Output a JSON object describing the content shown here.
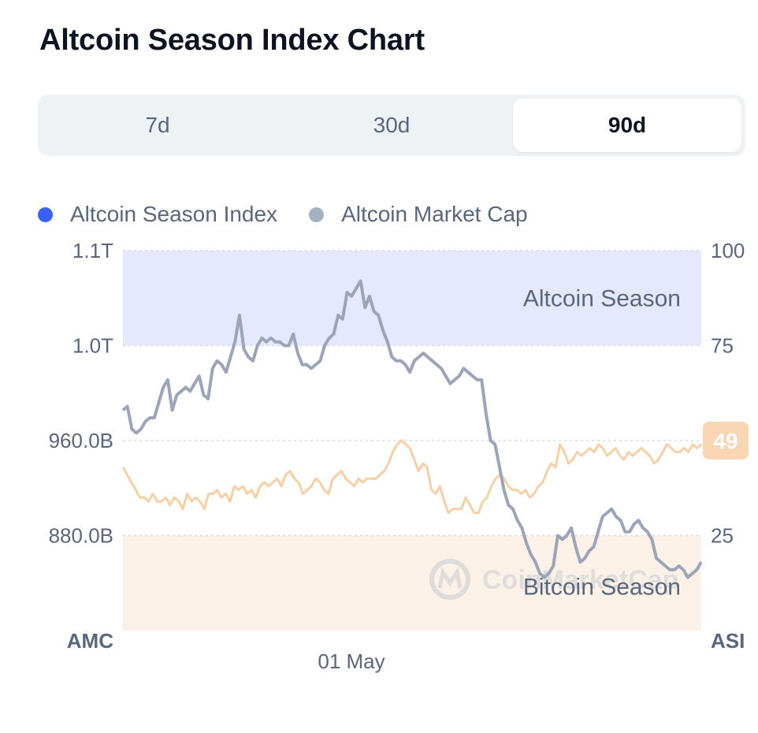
{
  "title": "Altcoin Season Index Chart",
  "tabs": [
    {
      "label": "7d",
      "active": false
    },
    {
      "label": "30d",
      "active": false
    },
    {
      "label": "90d",
      "active": true
    }
  ],
  "watermark": "CoinMarketCap",
  "colors": {
    "index_dot": "#3861fb",
    "market_cap_dot": "#a6b0c3",
    "market_cap_line": "#9ba4b9",
    "index_line": "#f7cfa5",
    "altcoin_zone": "#e6e9fe",
    "bitcoin_zone": "#fcf1e6",
    "badge": "#f9d6b3"
  },
  "chart_data": {
    "type": "line",
    "x_tick_labels": [
      "01 May"
    ],
    "left_axis": {
      "title": "AMC",
      "tick_labels": [
        "1.1T",
        "1.0T",
        "960.0B",
        "880.0B"
      ]
    },
    "right_axis": {
      "title": "ASI",
      "tick_labels": [
        "100",
        "75",
        "50",
        "25"
      ],
      "ylim": [
        0,
        100
      ]
    },
    "zones": [
      {
        "label": "Altcoin Season",
        "from": 75,
        "to": 100
      },
      {
        "label": "Bitcoin Season",
        "from": 0,
        "to": 25
      }
    ],
    "current_value_badge": "49",
    "series": [
      {
        "name": "Altcoin Season Index",
        "axis": "right",
        "values": [
          43,
          41,
          39,
          37,
          35,
          35,
          34,
          36,
          34,
          34,
          35,
          33,
          35,
          34,
          32,
          36,
          34,
          35,
          34,
          32,
          36,
          36,
          37,
          35,
          36,
          34,
          38,
          37,
          38,
          36,
          37,
          35,
          38,
          39,
          38,
          39,
          40,
          38,
          41,
          42,
          40,
          39,
          36,
          37,
          38,
          40,
          39,
          37,
          36,
          40,
          41,
          42,
          40,
          39,
          38,
          40,
          39,
          40,
          40,
          40,
          41,
          42,
          44,
          47,
          49,
          50,
          49,
          48,
          45,
          42,
          44,
          43,
          37,
          36,
          38,
          34,
          31,
          32,
          32,
          32,
          35,
          33,
          31,
          31,
          34,
          35,
          38,
          40,
          41,
          40,
          38,
          37,
          37,
          36,
          37,
          35,
          36,
          38,
          39,
          42,
          44,
          43,
          49,
          47,
          44,
          45,
          47,
          46,
          47,
          48,
          47,
          49,
          48,
          46,
          47,
          48,
          46,
          45,
          47,
          46,
          47,
          48,
          47,
          46,
          44,
          45,
          47,
          49,
          48,
          47,
          47,
          48,
          47,
          49,
          48,
          49
        ]
      },
      {
        "name": "Altcoin Market Cap",
        "axis": "left",
        "values": [
          58,
          59,
          53,
          52,
          53,
          55,
          56,
          56,
          60,
          64,
          66,
          58,
          62,
          63,
          64,
          63,
          65,
          67,
          62,
          61,
          69,
          71,
          70,
          68,
          72,
          76,
          83,
          74,
          72,
          71,
          75,
          77,
          76,
          77,
          76,
          76,
          75,
          75,
          78,
          73,
          70,
          70,
          69,
          70,
          71,
          75,
          77,
          78,
          83,
          82,
          89,
          88,
          90,
          92,
          85,
          88,
          84,
          83,
          79,
          76,
          72,
          71,
          71,
          70,
          68,
          71,
          72,
          73,
          72,
          71,
          70,
          69,
          67,
          65,
          66,
          67,
          69,
          68,
          67,
          66,
          66,
          57,
          50,
          49,
          43,
          37,
          33,
          32,
          29,
          27,
          23,
          20,
          18,
          15,
          14,
          15,
          17,
          25,
          24,
          25,
          27,
          22,
          18,
          19,
          21,
          22,
          26,
          30,
          31,
          32,
          30,
          29,
          26,
          26,
          28,
          29,
          27,
          26,
          24,
          19,
          18,
          17,
          16,
          16,
          17,
          16,
          14,
          15,
          16,
          18
        ]
      }
    ]
  }
}
